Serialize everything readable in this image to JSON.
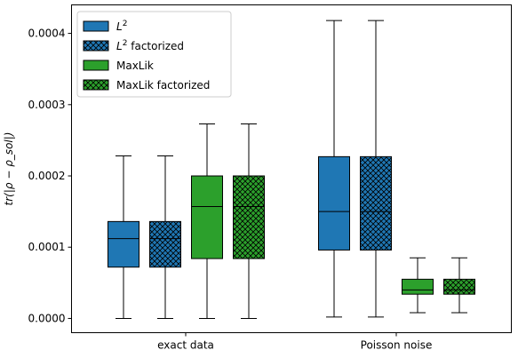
{
  "chart_data": {
    "type": "box",
    "title": "",
    "xlabel": "",
    "ylabel": "tr(|ρ − ρ_sol|)",
    "ylim": [
      -2e-05,
      0.00044
    ],
    "yticks": [
      0.0,
      0.0001,
      0.0002,
      0.0003,
      0.0004
    ],
    "ytick_labels": [
      "0.0000",
      "0.0001",
      "0.0002",
      "0.0003",
      "0.0004"
    ],
    "categories": [
      "exact data",
      "Poisson noise"
    ],
    "legend_position": "upper-left",
    "grid": false,
    "series": [
      {
        "name": "L² factorized",
        "legend_base": "L",
        "legend_sup": "2",
        "legend_suffix": " factorized",
        "color": "#1f77b4",
        "hatch": true,
        "boxes": [
          {
            "whisker_low": 0.0,
            "q1": 7.2e-05,
            "median": 0.000112,
            "q3": 0.000136,
            "whisker_high": 0.000228
          },
          {
            "whisker_low": 2e-06,
            "q1": 9.6e-05,
            "median": 0.00015,
            "q3": 0.000227,
            "whisker_high": 0.000418
          }
        ]
      },
      {
        "name": "MaxLik",
        "legend_base": "MaxLik",
        "legend_sup": "",
        "legend_suffix": "",
        "color": "#2ca02c",
        "hatch": false,
        "boxes": [
          {
            "whisker_low": 0.0,
            "q1": 8.4e-05,
            "median": 0.000157,
            "q3": 0.0002,
            "whisker_high": 0.000273
          },
          {
            "whisker_low": 8e-06,
            "q1": 3.4e-05,
            "median": 4e-05,
            "q3": 5.5e-05,
            "whisker_high": 8.5e-05
          }
        ]
      },
      {
        "name": "L²",
        "legend_base": "L",
        "legend_sup": "2",
        "legend_suffix": "",
        "color": "#1f77b4",
        "hatch": false,
        "boxes": [
          {
            "whisker_low": 0.0,
            "q1": 7.2e-05,
            "median": 0.000112,
            "q3": 0.000136,
            "whisker_high": 0.000228
          },
          {
            "whisker_low": 2e-06,
            "q1": 9.6e-05,
            "median": 0.00015,
            "q3": 0.000227,
            "whisker_high": 0.000418
          }
        ]
      },
      {
        "name": "MaxLik factorized",
        "legend_base": "MaxLik factorized",
        "legend_sup": "",
        "legend_suffix": "",
        "color": "#2ca02c",
        "hatch": true,
        "boxes": [
          {
            "whisker_low": 0.0,
            "q1": 8.4e-05,
            "median": 0.000157,
            "q3": 0.0002,
            "whisker_high": 0.000273
          },
          {
            "whisker_low": 8e-06,
            "q1": 3.4e-05,
            "median": 4e-05,
            "q3": 5.5e-05,
            "whisker_high": 8.5e-05
          }
        ]
      }
    ]
  }
}
